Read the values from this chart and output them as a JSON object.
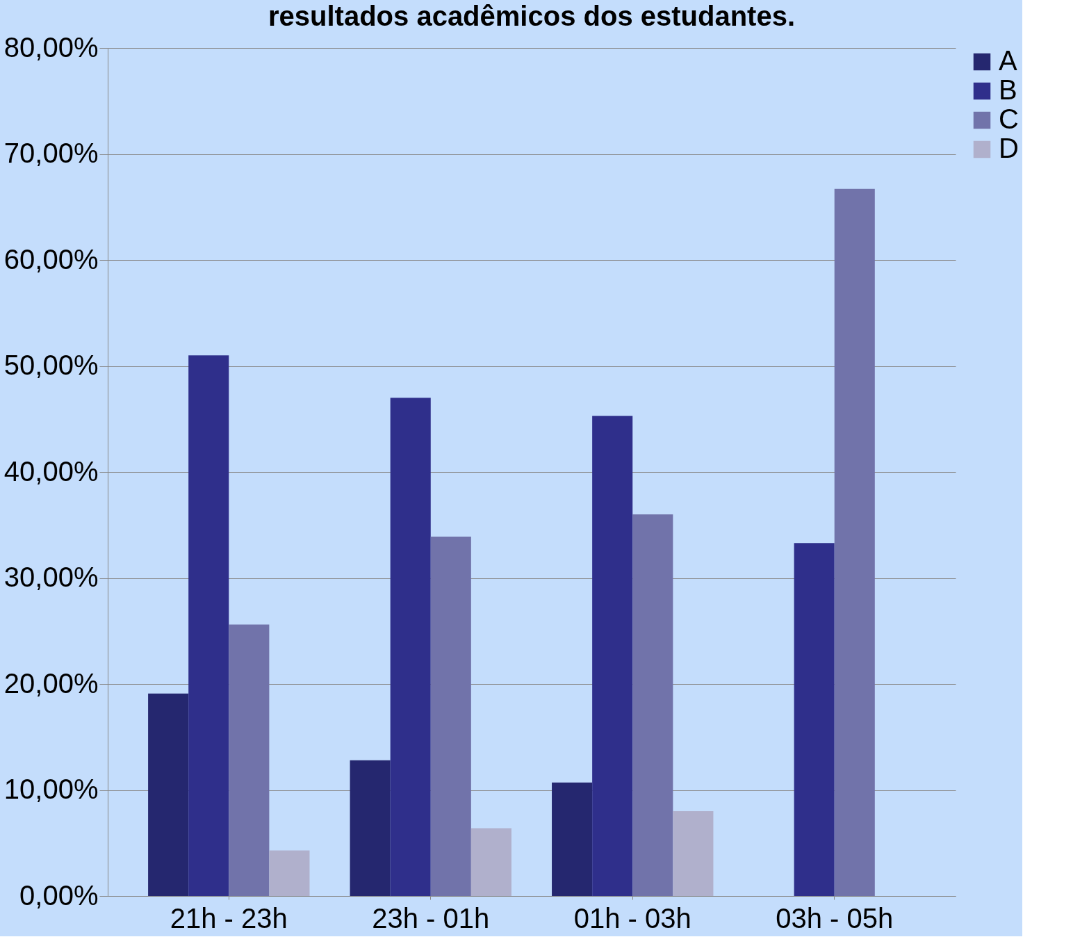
{
  "chart_data": {
    "type": "bar",
    "title": "resultados acadêmicos dos estudantes.",
    "categories": [
      "21h - 23h",
      "23h - 01h",
      "01h - 03h",
      "03h - 05h"
    ],
    "series": [
      {
        "name": "A",
        "color": "#25276f",
        "values": [
          19.1,
          12.8,
          10.7,
          0
        ]
      },
      {
        "name": "B",
        "color": "#2f2f8b",
        "values": [
          51.0,
          47.0,
          45.3,
          33.3
        ]
      },
      {
        "name": "C",
        "color": "#7173aa",
        "values": [
          25.6,
          33.9,
          36.0,
          66.7
        ]
      },
      {
        "name": "D",
        "color": "#b0b0cc",
        "values": [
          4.3,
          6.4,
          8.0,
          0
        ]
      }
    ],
    "ylim": [
      0,
      80
    ],
    "yticks": [
      {
        "value": 0,
        "label": "0,00%"
      },
      {
        "value": 10,
        "label": "10,00%"
      },
      {
        "value": 20,
        "label": "20,00%"
      },
      {
        "value": 30,
        "label": "30,00%"
      },
      {
        "value": 40,
        "label": "40,00%"
      },
      {
        "value": 50,
        "label": "50,00%"
      },
      {
        "value": 60,
        "label": "60,00%"
      },
      {
        "value": 70,
        "label": "70,00%"
      },
      {
        "value": 80,
        "label": "80,00%"
      }
    ],
    "grid": "y",
    "legend": "right"
  }
}
